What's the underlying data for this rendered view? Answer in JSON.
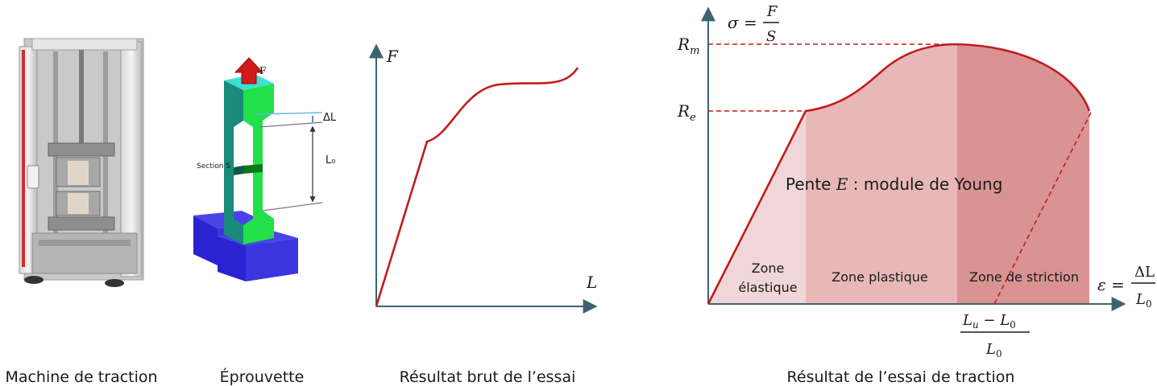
{
  "captions": {
    "machine": "Machine de traction",
    "specimen": "Éprouvette",
    "raw": "Résultat brut de l’essai",
    "result": "Résultat de l’essai de traction"
  },
  "specimen": {
    "force": "F",
    "delta_l": "ΔL",
    "l0": "L₀",
    "section": "Section S"
  },
  "raw_chart": {
    "y_label": "F",
    "x_label": "L"
  },
  "result_chart": {
    "sigma_lhs": "σ =",
    "sigma_num": "F",
    "sigma_den": "S",
    "rm": "R",
    "rm_sub": "m",
    "re": "R",
    "re_sub": "e",
    "slope_prefix": "Pente ",
    "slope_symbol": "E",
    "slope_suffix": " : module de Young",
    "zone_elastic_1": "Zone",
    "zone_elastic_2": "élastique",
    "zone_plastic": "Zone plastique",
    "zone_striction": "Zone de striction",
    "eps_lhs": "ε =",
    "eps_num": "ΔL",
    "eps_den": "L",
    "eps_den_sub": "0",
    "lu_num_a": "L",
    "lu_num_a_sub": "u",
    "lu_num_op": " − ",
    "lu_num_b": "L",
    "lu_num_b_sub": "0",
    "lu_den": "L",
    "lu_den_sub": "0"
  },
  "colors": {
    "curve": "#c01c1c",
    "axis": "#3b6470",
    "zone_elastic": "#f0d6d6",
    "zone_plastic": "#e8b8b8",
    "zone_striction": "#d99393",
    "specimen_body": "#22e04a",
    "grip": "#2a24d0"
  }
}
